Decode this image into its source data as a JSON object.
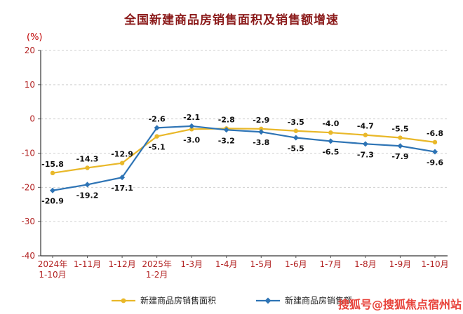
{
  "watermark": {
    "text": "搜狐号@搜狐焦点宿州站",
    "color": "#e8443c"
  },
  "chart_data": {
    "type": "line",
    "title": "全国新建商品房销售面积及销售额增速",
    "y_unit_label": "(%)",
    "categories": [
      "2024年\n1-10月",
      "1-11月",
      "1-12月",
      "2025年\n1-2月",
      "1-3月",
      "1-4月",
      "1-5月",
      "1-6月",
      "1-7月",
      "1-8月",
      "1-9月",
      "1-10月"
    ],
    "series": [
      {
        "name": "新建商品房销售面积",
        "color": "#e9b829",
        "marker": "circle",
        "values": [
          -15.8,
          -14.3,
          -12.9,
          -5.1,
          -3.0,
          -2.8,
          -2.9,
          -3.5,
          -4.0,
          -4.7,
          -5.5,
          -6.8
        ]
      },
      {
        "name": "新建商品房销售额",
        "color": "#2e74b5",
        "marker": "diamond",
        "values": [
          -20.9,
          -19.2,
          -17.1,
          -2.6,
          -2.1,
          -3.2,
          -3.8,
          -5.5,
          -6.5,
          -7.3,
          -7.9,
          -9.6
        ]
      }
    ],
    "ylim": [
      -40,
      20
    ],
    "yticks": [
      20,
      10,
      0,
      -10,
      -20,
      -30,
      -40
    ],
    "grid": true,
    "legend_position": "bottom",
    "axis_label_color": "#b22222",
    "data_label_color": "#111111"
  }
}
